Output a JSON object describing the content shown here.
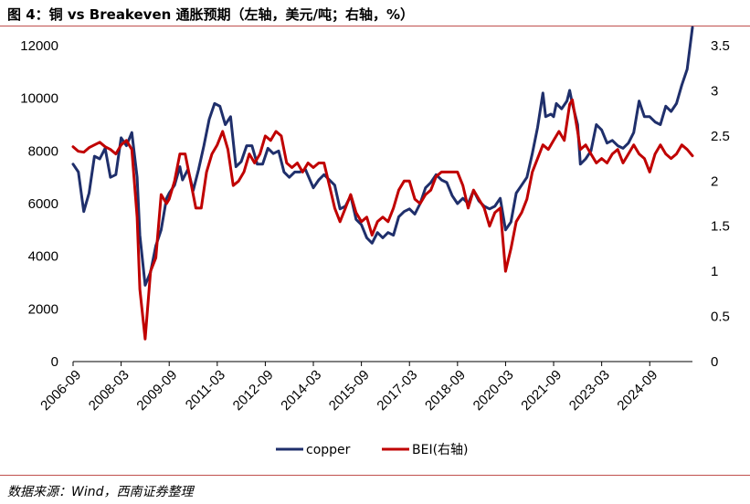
{
  "header": {
    "title": "图 4：铜 vs Breakeven 通胀预期（左轴，美元/吨；右轴，%）"
  },
  "footer": {
    "source": "数据来源：Wind，西南证券整理"
  },
  "colors": {
    "copper": "#1f2f6b",
    "bei": "#c00000",
    "accent_rule": "#c0504d"
  },
  "chart_data": {
    "type": "line",
    "title": "图 4：铜 vs Breakeven 通胀预期（左轴，美元/吨；右轴，%）",
    "x_tick_labels": [
      "2006-09",
      "2008-03",
      "2009-09",
      "2011-03",
      "2012-09",
      "2014-03",
      "2015-09",
      "2017-03",
      "2018-09",
      "2020-03",
      "2021-09",
      "2023-03",
      "2024-09"
    ],
    "y_left": {
      "ticks": [
        "0",
        "2000",
        "4000",
        "6000",
        "8000",
        "10000",
        "12000"
      ],
      "ylim": [
        0,
        12000
      ]
    },
    "y_right": {
      "ticks": [
        "0",
        "0.5",
        "1",
        "1.5",
        "2",
        "2.5",
        "3",
        "3.5"
      ],
      "ylim": [
        0,
        3.5
      ]
    },
    "legend": {
      "placement": "bottom"
    },
    "grid": false,
    "series": [
      {
        "name": "copper",
        "axis": "left",
        "points": [
          [
            "2006-09",
            7500
          ],
          [
            "2006-11",
            7200
          ],
          [
            "2007-01",
            5700
          ],
          [
            "2007-03",
            6400
          ],
          [
            "2007-05",
            7800
          ],
          [
            "2007-07",
            7700
          ],
          [
            "2007-09",
            8100
          ],
          [
            "2007-11",
            7000
          ],
          [
            "2008-01",
            7100
          ],
          [
            "2008-03",
            8500
          ],
          [
            "2008-05",
            8200
          ],
          [
            "2008-07",
            8700
          ],
          [
            "2008-09",
            7000
          ],
          [
            "2008-10",
            4800
          ],
          [
            "2008-12",
            2900
          ],
          [
            "2009-02",
            3400
          ],
          [
            "2009-04",
            4400
          ],
          [
            "2009-06",
            5000
          ],
          [
            "2009-08",
            6200
          ],
          [
            "2009-09",
            6400
          ],
          [
            "2009-11",
            6700
          ],
          [
            "2010-01",
            7400
          ],
          [
            "2010-02",
            6900
          ],
          [
            "2010-04",
            7300
          ],
          [
            "2010-06",
            6500
          ],
          [
            "2010-08",
            7300
          ],
          [
            "2010-10",
            8200
          ],
          [
            "2010-12",
            9200
          ],
          [
            "2011-02",
            9800
          ],
          [
            "2011-04",
            9700
          ],
          [
            "2011-06",
            9000
          ],
          [
            "2011-08",
            9300
          ],
          [
            "2011-10",
            7400
          ],
          [
            "2011-12",
            7600
          ],
          [
            "2012-02",
            8200
          ],
          [
            "2012-04",
            8200
          ],
          [
            "2012-06",
            7500
          ],
          [
            "2012-08",
            7500
          ],
          [
            "2012-10",
            8100
          ],
          [
            "2012-12",
            7900
          ],
          [
            "2013-02",
            8000
          ],
          [
            "2013-04",
            7200
          ],
          [
            "2013-06",
            7000
          ],
          [
            "2013-08",
            7200
          ],
          [
            "2013-10",
            7200
          ],
          [
            "2013-12",
            7300
          ],
          [
            "2014-03",
            6600
          ],
          [
            "2014-05",
            6900
          ],
          [
            "2014-07",
            7100
          ],
          [
            "2014-09",
            6900
          ],
          [
            "2014-11",
            6700
          ],
          [
            "2015-01",
            5800
          ],
          [
            "2015-03",
            5900
          ],
          [
            "2015-05",
            6300
          ],
          [
            "2015-07",
            5400
          ],
          [
            "2015-09",
            5200
          ],
          [
            "2015-11",
            4700
          ],
          [
            "2016-01",
            4500
          ],
          [
            "2016-03",
            4900
          ],
          [
            "2016-05",
            4700
          ],
          [
            "2016-07",
            4900
          ],
          [
            "2016-09",
            4800
          ],
          [
            "2016-11",
            5500
          ],
          [
            "2017-01",
            5700
          ],
          [
            "2017-03",
            5800
          ],
          [
            "2017-05",
            5600
          ],
          [
            "2017-07",
            6000
          ],
          [
            "2017-09",
            6600
          ],
          [
            "2017-11",
            6800
          ],
          [
            "2018-01",
            7100
          ],
          [
            "2018-03",
            6900
          ],
          [
            "2018-05",
            6800
          ],
          [
            "2018-07",
            6300
          ],
          [
            "2018-09",
            6000
          ],
          [
            "2018-11",
            6200
          ],
          [
            "2019-01",
            6000
          ],
          [
            "2019-03",
            6500
          ],
          [
            "2019-05",
            6100
          ],
          [
            "2019-07",
            5900
          ],
          [
            "2019-09",
            5800
          ],
          [
            "2019-11",
            5900
          ],
          [
            "2020-01",
            6200
          ],
          [
            "2020-03",
            5000
          ],
          [
            "2020-05",
            5300
          ],
          [
            "2020-07",
            6400
          ],
          [
            "2020-09",
            6700
          ],
          [
            "2020-11",
            7000
          ],
          [
            "2021-01",
            7900
          ],
          [
            "2021-03",
            8900
          ],
          [
            "2021-05",
            10200
          ],
          [
            "2021-06",
            9300
          ],
          [
            "2021-08",
            9400
          ],
          [
            "2021-09",
            9300
          ],
          [
            "2021-10",
            9800
          ],
          [
            "2021-12",
            9600
          ],
          [
            "2022-02",
            9900
          ],
          [
            "2022-03",
            10300
          ],
          [
            "2022-04",
            9800
          ],
          [
            "2022-06",
            9000
          ],
          [
            "2022-07",
            7500
          ],
          [
            "2022-09",
            7700
          ],
          [
            "2022-11",
            8000
          ],
          [
            "2023-01",
            9000
          ],
          [
            "2023-03",
            8800
          ],
          [
            "2023-05",
            8300
          ],
          [
            "2023-07",
            8400
          ],
          [
            "2023-09",
            8200
          ],
          [
            "2023-11",
            8100
          ],
          [
            "2024-01",
            8300
          ],
          [
            "2024-03",
            8700
          ],
          [
            "2024-05",
            9900
          ],
          [
            "2024-07",
            9300
          ],
          [
            "2024-09",
            9300
          ],
          [
            "2024-11",
            9100
          ],
          [
            "2025-01",
            9000
          ],
          [
            "2025-03",
            9700
          ],
          [
            "2025-05",
            9500
          ],
          [
            "2025-07",
            9800
          ],
          [
            "2025-09",
            10500
          ],
          [
            "2025-11",
            11100
          ],
          [
            "2026-01",
            12900
          ]
        ]
      },
      {
        "name": "BEI(右轴)",
        "axis": "right",
        "points": [
          [
            "2006-09",
            2.38
          ],
          [
            "2006-11",
            2.33
          ],
          [
            "2007-01",
            2.32
          ],
          [
            "2007-03",
            2.37
          ],
          [
            "2007-05",
            2.4
          ],
          [
            "2007-07",
            2.43
          ],
          [
            "2007-09",
            2.38
          ],
          [
            "2007-11",
            2.35
          ],
          [
            "2008-01",
            2.3
          ],
          [
            "2008-03",
            2.4
          ],
          [
            "2008-05",
            2.45
          ],
          [
            "2008-07",
            2.35
          ],
          [
            "2008-09",
            1.6
          ],
          [
            "2008-10",
            0.8
          ],
          [
            "2008-12",
            0.25
          ],
          [
            "2009-02",
            1.0
          ],
          [
            "2009-04",
            1.15
          ],
          [
            "2009-06",
            1.85
          ],
          [
            "2009-08",
            1.75
          ],
          [
            "2009-09",
            1.8
          ],
          [
            "2009-11",
            2.0
          ],
          [
            "2010-01",
            2.3
          ],
          [
            "2010-03",
            2.3
          ],
          [
            "2010-05",
            2.0
          ],
          [
            "2010-07",
            1.7
          ],
          [
            "2010-09",
            1.7
          ],
          [
            "2010-11",
            2.1
          ],
          [
            "2011-01",
            2.3
          ],
          [
            "2011-03",
            2.4
          ],
          [
            "2011-05",
            2.55
          ],
          [
            "2011-07",
            2.35
          ],
          [
            "2011-09",
            1.95
          ],
          [
            "2011-11",
            2.0
          ],
          [
            "2012-01",
            2.1
          ],
          [
            "2012-03",
            2.3
          ],
          [
            "2012-05",
            2.2
          ],
          [
            "2012-07",
            2.3
          ],
          [
            "2012-09",
            2.5
          ],
          [
            "2012-11",
            2.45
          ],
          [
            "2013-01",
            2.55
          ],
          [
            "2013-03",
            2.5
          ],
          [
            "2013-05",
            2.2
          ],
          [
            "2013-07",
            2.15
          ],
          [
            "2013-09",
            2.2
          ],
          [
            "2013-11",
            2.1
          ],
          [
            "2014-01",
            2.2
          ],
          [
            "2014-03",
            2.15
          ],
          [
            "2014-05",
            2.2
          ],
          [
            "2014-07",
            2.2
          ],
          [
            "2014-09",
            1.95
          ],
          [
            "2014-11",
            1.7
          ],
          [
            "2015-01",
            1.55
          ],
          [
            "2015-03",
            1.7
          ],
          [
            "2015-05",
            1.85
          ],
          [
            "2015-07",
            1.65
          ],
          [
            "2015-09",
            1.55
          ],
          [
            "2015-11",
            1.6
          ],
          [
            "2016-01",
            1.4
          ],
          [
            "2016-03",
            1.55
          ],
          [
            "2016-05",
            1.6
          ],
          [
            "2016-07",
            1.55
          ],
          [
            "2016-09",
            1.7
          ],
          [
            "2016-11",
            1.9
          ],
          [
            "2017-01",
            2.0
          ],
          [
            "2017-03",
            2.0
          ],
          [
            "2017-05",
            1.8
          ],
          [
            "2017-07",
            1.75
          ],
          [
            "2017-09",
            1.85
          ],
          [
            "2017-11",
            1.9
          ],
          [
            "2018-01",
            2.05
          ],
          [
            "2018-03",
            2.1
          ],
          [
            "2018-05",
            2.1
          ],
          [
            "2018-07",
            2.1
          ],
          [
            "2018-09",
            2.1
          ],
          [
            "2018-11",
            1.95
          ],
          [
            "2019-01",
            1.7
          ],
          [
            "2019-03",
            1.9
          ],
          [
            "2019-05",
            1.8
          ],
          [
            "2019-07",
            1.7
          ],
          [
            "2019-09",
            1.5
          ],
          [
            "2019-11",
            1.65
          ],
          [
            "2020-01",
            1.7
          ],
          [
            "2020-03",
            1.0
          ],
          [
            "2020-05",
            1.25
          ],
          [
            "2020-07",
            1.55
          ],
          [
            "2020-09",
            1.65
          ],
          [
            "2020-11",
            1.8
          ],
          [
            "2021-01",
            2.1
          ],
          [
            "2021-03",
            2.25
          ],
          [
            "2021-05",
            2.4
          ],
          [
            "2021-07",
            2.35
          ],
          [
            "2021-09",
            2.45
          ],
          [
            "2021-11",
            2.55
          ],
          [
            "2022-01",
            2.45
          ],
          [
            "2022-03",
            2.85
          ],
          [
            "2022-04",
            2.9
          ],
          [
            "2022-06",
            2.55
          ],
          [
            "2022-07",
            2.35
          ],
          [
            "2022-09",
            2.4
          ],
          [
            "2022-11",
            2.3
          ],
          [
            "2023-01",
            2.2
          ],
          [
            "2023-03",
            2.25
          ],
          [
            "2023-05",
            2.2
          ],
          [
            "2023-07",
            2.3
          ],
          [
            "2023-09",
            2.35
          ],
          [
            "2023-11",
            2.2
          ],
          [
            "2024-01",
            2.3
          ],
          [
            "2024-03",
            2.4
          ],
          [
            "2024-05",
            2.3
          ],
          [
            "2024-07",
            2.25
          ],
          [
            "2024-09",
            2.1
          ],
          [
            "2024-11",
            2.3
          ],
          [
            "2025-01",
            2.4
          ],
          [
            "2025-03",
            2.3
          ],
          [
            "2025-05",
            2.25
          ],
          [
            "2025-07",
            2.3
          ],
          [
            "2025-09",
            2.4
          ],
          [
            "2025-11",
            2.35
          ],
          [
            "2026-01",
            2.28
          ]
        ]
      }
    ]
  }
}
